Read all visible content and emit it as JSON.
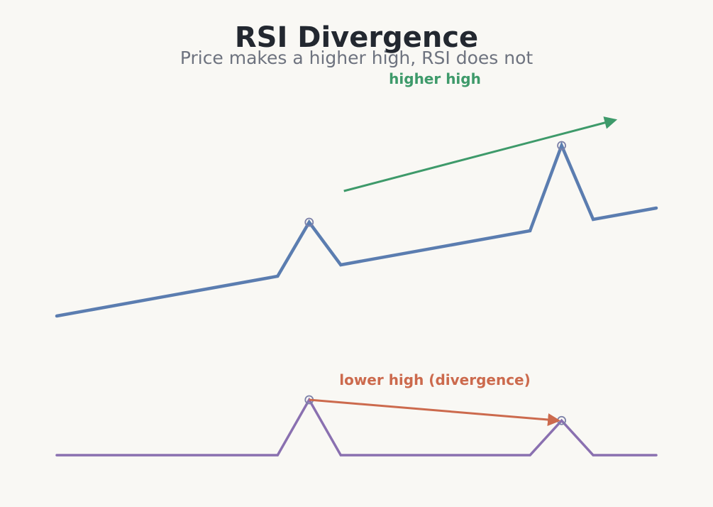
{
  "title": "RSI Divergence",
  "subtitle": "Price makes a higher high, RSI does not",
  "colors": {
    "background": "#f9f8f4",
    "price_line": "#5b7db0",
    "rsi_line": "#8a70b0",
    "higher_high_arrow": "#3e9a6a",
    "divergence_arrow": "#cc6a4d",
    "marker": "#7c80a8"
  },
  "chart_data": [
    {
      "type": "line",
      "name": "",
      "x": [
        0,
        7,
        8,
        9,
        15,
        16,
        17,
        19
      ],
      "values": [
        0,
        14,
        33,
        18,
        30,
        60,
        34,
        38
      ],
      "xlim": [
        0,
        19
      ],
      "ylim": [
        0,
        60
      ],
      "xlabel": "",
      "ylabel": "",
      "grid": false,
      "highlight_points": [
        2,
        5
      ],
      "annotation": {
        "text": "higher high",
        "from": [
          9.1,
          44
        ],
        "to": [
          17.7,
          69
        ]
      }
    },
    {
      "type": "line",
      "name": "",
      "x": [
        0,
        7,
        8,
        9,
        15,
        16,
        17,
        19
      ],
      "values": [
        0,
        0,
        20,
        0,
        0,
        12.5,
        0,
        0
      ],
      "xlim": [
        0,
        19
      ],
      "ylim": [
        0,
        20
      ],
      "xlabel": "",
      "ylabel": "",
      "grid": false,
      "highlight_points": [
        2,
        5
      ],
      "annotation": {
        "text": "lower high (divergence)",
        "from": [
          8,
          20
        ],
        "to": [
          15.9,
          12.5
        ]
      }
    }
  ]
}
